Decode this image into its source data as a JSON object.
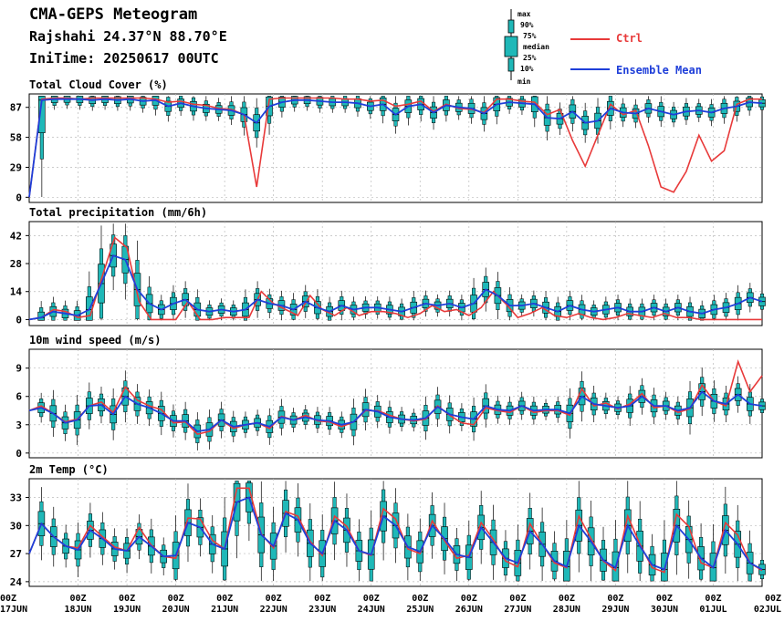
{
  "header": {
    "title": "CMA-GEPS Meteogram",
    "location": "Rajshahi 24.37°N 88.70°E",
    "init_time": "IniTime: 20250617 00UTC"
  },
  "legend": {
    "box_labels": [
      "max",
      "90%",
      "75%",
      "median",
      "25%",
      "10%",
      "min"
    ],
    "ctrl_label": "Ctrl",
    "mean_label": "Ensemble Mean",
    "colors": {
      "ctrl": "#e83a3a",
      "mean": "#1f3fd9",
      "box": "#1fb8b8"
    }
  },
  "x_axis": {
    "labels": [
      {
        "t": "00Z",
        "d": "17JUN"
      },
      {
        "t": "00Z",
        "d": "18JUN"
      },
      {
        "t": "00Z",
        "d": "19JUN"
      },
      {
        "t": "00Z",
        "d": "20JUN"
      },
      {
        "t": "00Z",
        "d": "21JUN"
      },
      {
        "t": "00Z",
        "d": "22JUN"
      },
      {
        "t": "00Z",
        "d": "23JUN"
      },
      {
        "t": "00Z",
        "d": "24JUN"
      },
      {
        "t": "00Z",
        "d": "25JUN"
      },
      {
        "t": "00Z",
        "d": "26JUN"
      },
      {
        "t": "00Z",
        "d": "27JUN"
      },
      {
        "t": "00Z",
        "d": "28JUN"
      },
      {
        "t": "00Z",
        "d": "29JUN"
      },
      {
        "t": "00Z",
        "d": "30JUN"
      },
      {
        "t": "00Z",
        "d": "01JUL"
      },
      {
        "t": "00Z",
        "d": "02JUL"
      }
    ]
  },
  "chart_data": [
    {
      "type": "line",
      "title": "Total Cloud Cover (%)",
      "ylim": [
        -5,
        100
      ],
      "yticks": [
        0,
        29,
        58,
        87
      ],
      "grid": true,
      "ctrl": [
        0,
        95,
        96,
        96,
        95,
        96,
        96,
        96,
        96,
        96,
        95,
        92,
        93,
        90,
        89,
        86,
        85,
        80,
        10,
        95,
        96,
        96,
        96,
        96,
        96,
        95,
        95,
        93,
        94,
        88,
        90,
        93,
        83,
        90,
        86,
        85,
        82,
        95,
        95,
        93,
        92,
        80,
        85,
        55,
        30,
        60,
        90,
        80,
        84,
        50,
        10,
        5,
        25,
        60,
        35,
        45,
        90,
        95,
        95
      ],
      "mean": [
        0,
        94,
        95,
        95,
        95,
        94,
        95,
        94,
        95,
        93,
        94,
        88,
        91,
        88,
        86,
        85,
        84,
        80,
        72,
        88,
        92,
        94,
        94,
        93,
        92,
        92,
        91,
        88,
        90,
        80,
        88,
        90,
        82,
        89,
        87,
        86,
        81,
        90,
        92,
        91,
        90,
        77,
        76,
        83,
        72,
        74,
        86,
        82,
        81,
        86,
        83,
        80,
        83,
        84,
        82,
        86,
        88,
        92,
        91
      ]
    },
    {
      "type": "line",
      "title": "Total precipitation (mm/6h)",
      "ylim": [
        -3,
        49
      ],
      "yticks": [
        0,
        14,
        28,
        42
      ],
      "grid": true,
      "ctrl": [
        0,
        1,
        5,
        4,
        1,
        2,
        22,
        41,
        36,
        9,
        0,
        0,
        0,
        9,
        0,
        0,
        1,
        1,
        1,
        14,
        8,
        5,
        2,
        12,
        5,
        2,
        6,
        2,
        4,
        4,
        3,
        1,
        3,
        7,
        4,
        5,
        2,
        6,
        14,
        8,
        1,
        3,
        6,
        2,
        1,
        3,
        1,
        0,
        1,
        3,
        2,
        1,
        3,
        1,
        1,
        0,
        0,
        0,
        0,
        0,
        0
      ],
      "mean": [
        0,
        1,
        4,
        3,
        2,
        5,
        18,
        32,
        30,
        15,
        8,
        5,
        8,
        10,
        5,
        4,
        5,
        4,
        5,
        10,
        8,
        7,
        5,
        9,
        6,
        4,
        7,
        5,
        6,
        6,
        5,
        4,
        6,
        8,
        7,
        8,
        6,
        8,
        15,
        12,
        7,
        7,
        8,
        6,
        4,
        7,
        5,
        4,
        5,
        6,
        4,
        4,
        6,
        4,
        6,
        4,
        3,
        5,
        6,
        8,
        11,
        9
      ]
    },
    {
      "type": "line",
      "title": "10m wind speed (m/s)",
      "ylim": [
        -0.5,
        11
      ],
      "yticks": [
        0,
        3,
        6,
        9
      ],
      "grid": true,
      "ctrl": [
        4.5,
        5.0,
        4.2,
        3.3,
        3.6,
        5.0,
        5.4,
        4.3,
        7.0,
        5.6,
        5.0,
        4.6,
        3.2,
        3.3,
        2.0,
        2.3,
        3.5,
        2.6,
        3.0,
        3.2,
        2.6,
        3.9,
        3.5,
        4.0,
        3.4,
        3.3,
        2.8,
        3.3,
        4.5,
        4.5,
        4.0,
        3.6,
        3.4,
        3.6,
        5.0,
        4.0,
        3.2,
        3.0,
        4.8,
        4.5,
        4.3,
        5.0,
        4.3,
        4.5,
        4.5,
        4.0,
        6.8,
        5.0,
        5.3,
        4.7,
        5.2,
        6.3,
        4.8,
        5.0,
        4.3,
        4.7,
        7.2,
        5.5,
        5.0,
        9.7,
        6.5,
        8.2
      ],
      "mean": [
        4.5,
        4.8,
        4.2,
        3.2,
        3.5,
        5.0,
        5.1,
        4.1,
        6.0,
        5.2,
        4.8,
        4.2,
        3.4,
        3.4,
        2.3,
        2.5,
        3.5,
        2.8,
        3.0,
        3.2,
        2.8,
        3.8,
        3.5,
        3.8,
        3.5,
        3.4,
        3.0,
        3.3,
        4.6,
        4.4,
        3.8,
        3.6,
        3.5,
        3.7,
        4.9,
        4.1,
        3.8,
        3.6,
        5.0,
        4.6,
        4.5,
        5.0,
        4.5,
        4.6,
        4.6,
        4.2,
        6.0,
        5.2,
        5.0,
        4.8,
        5.0,
        6.0,
        5.0,
        5.0,
        4.5,
        4.8,
        6.5,
        5.5,
        5.2,
        6.2,
        5.2,
        5.0
      ]
    },
    {
      "type": "line",
      "title": "2m Temp (°C)",
      "ylim": [
        23.5,
        35
      ],
      "yticks": [
        24,
        27,
        30,
        33
      ],
      "grid": true,
      "ctrl": [
        27.0,
        30.2,
        28.8,
        27.8,
        27.6,
        30.0,
        28.8,
        27.7,
        27.3,
        29.8,
        27.9,
        26.7,
        26.5,
        30.8,
        30.7,
        28.4,
        27.5,
        34.0,
        34.0,
        29.1,
        27.6,
        31.5,
        31.0,
        28.3,
        26.8,
        31.0,
        29.9,
        27.3,
        26.8,
        31.8,
        30.7,
        27.5,
        27.0,
        30.5,
        28.4,
        26.5,
        26.8,
        30.3,
        28.5,
        26.2,
        25.6,
        30.2,
        28.0,
        26.0,
        25.5,
        31.0,
        28.6,
        26.2,
        25.2,
        31.0,
        28.0,
        25.5,
        25.0,
        31.2,
        29.9,
        26.0,
        25.5,
        30.3,
        29.0,
        26.0,
        25.2
      ],
      "mean": [
        27.0,
        30.2,
        28.8,
        27.8,
        27.4,
        29.5,
        28.6,
        27.5,
        27.3,
        28.8,
        27.8,
        26.7,
        26.8,
        30.3,
        29.8,
        28.0,
        27.5,
        32.5,
        33.0,
        29.0,
        27.8,
        31.3,
        30.6,
        28.1,
        27.0,
        30.5,
        29.5,
        27.3,
        26.9,
        31.0,
        30.0,
        27.7,
        27.2,
        30.0,
        28.6,
        26.9,
        26.6,
        29.8,
        28.2,
        26.5,
        26.0,
        29.4,
        28.0,
        26.2,
        25.6,
        30.0,
        28.3,
        26.3,
        25.5,
        30.0,
        27.8,
        25.8,
        25.3,
        30.0,
        28.5,
        26.5,
        25.5,
        29.5,
        28.0,
        26.0,
        25.3
      ]
    }
  ]
}
